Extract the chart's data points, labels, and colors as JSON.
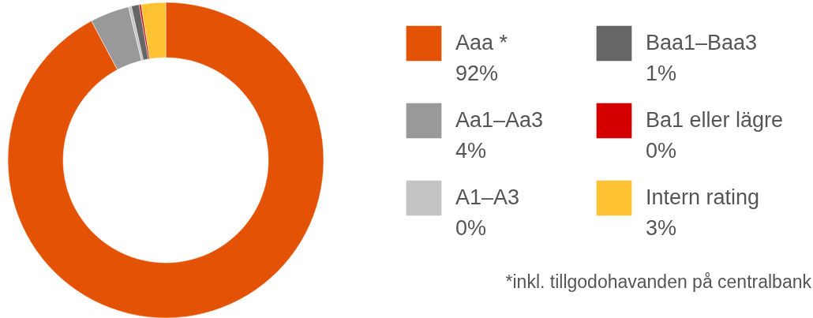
{
  "chart_data": {
    "type": "donut",
    "categories": [
      "Aaa *",
      "Aa1–Aa3",
      "A1–A3",
      "Baa1–Baa3",
      "Ba1 eller lägre",
      "Intern rating"
    ],
    "values": [
      92.2,
      4.0,
      0.3,
      0.8,
      0.2,
      2.5
    ],
    "value_labels": [
      "92%",
      "4%",
      "0%",
      "1%",
      "0%",
      "3%"
    ],
    "colors": [
      "#e35205",
      "#999999",
      "#c4c4c4",
      "#666666",
      "#d40000",
      "#ffc233"
    ],
    "legend": "right",
    "annotations": [
      "*inkl. tillgodohavanden på centralbank"
    ]
  }
}
